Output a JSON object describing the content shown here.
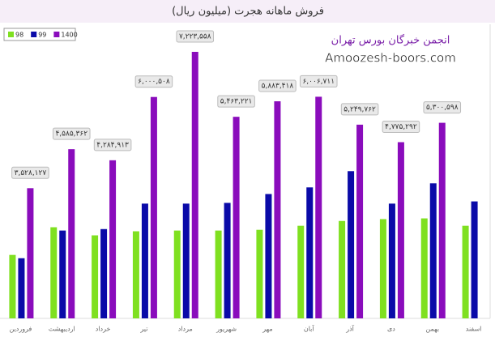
{
  "chart_data": {
    "type": "bar",
    "title": "فروش ماهانه هجرت (میلیون ریال)",
    "annotations": [
      "انجمن خبرگان بورس تهران",
      "Amoozesh-boors.com"
    ],
    "legend": "top-left",
    "categories": [
      "فروردین",
      "اردیبهشت",
      "خرداد",
      "تیر",
      "مرداد",
      "شهریور",
      "مهر",
      "آبان",
      "آذر",
      "دی",
      "بهمن",
      "اسفند"
    ],
    "series": [
      {
        "name": "98",
        "color": "#7fe020",
        "values": [
          1720000,
          2470000,
          2250000,
          2360000,
          2380000,
          2380000,
          2400000,
          2510000,
          2640000,
          2690000,
          2710000,
          2510000
        ]
      },
      {
        "name": "99",
        "color": "#0a0aa8",
        "values": [
          1630000,
          2380000,
          2420000,
          3110000,
          3110000,
          3130000,
          3370000,
          3550000,
          3990000,
          3110000,
          3660000,
          3170000
        ]
      },
      {
        "name": "1400",
        "color": "#8a0cbc",
        "values": [
          3528127,
          4585362,
          4284913,
          6000508,
          7223558,
          5463221,
          5883418,
          6006711,
          5249762,
          4775292,
          5300598,
          null
        ],
        "value_labels": [
          "۳,۵۲۸,۱۲۷",
          "۴,۵۸۵,۳۶۲",
          "۴,۲۸۴,۹۱۳",
          "۶,۰۰۰,۵۰۸",
          "۷,۲۲۳,۵۵۸",
          "۵,۴۶۳,۲۲۱",
          "۵,۸۸۳,۴۱۸",
          "۶,۰۰۶,۷۱۱",
          "۵,۲۴۹,۷۶۲",
          "۴,۷۷۵,۲۹۲",
          "۵,۳۰۰,۵۹۸",
          null
        ]
      }
    ]
  }
}
